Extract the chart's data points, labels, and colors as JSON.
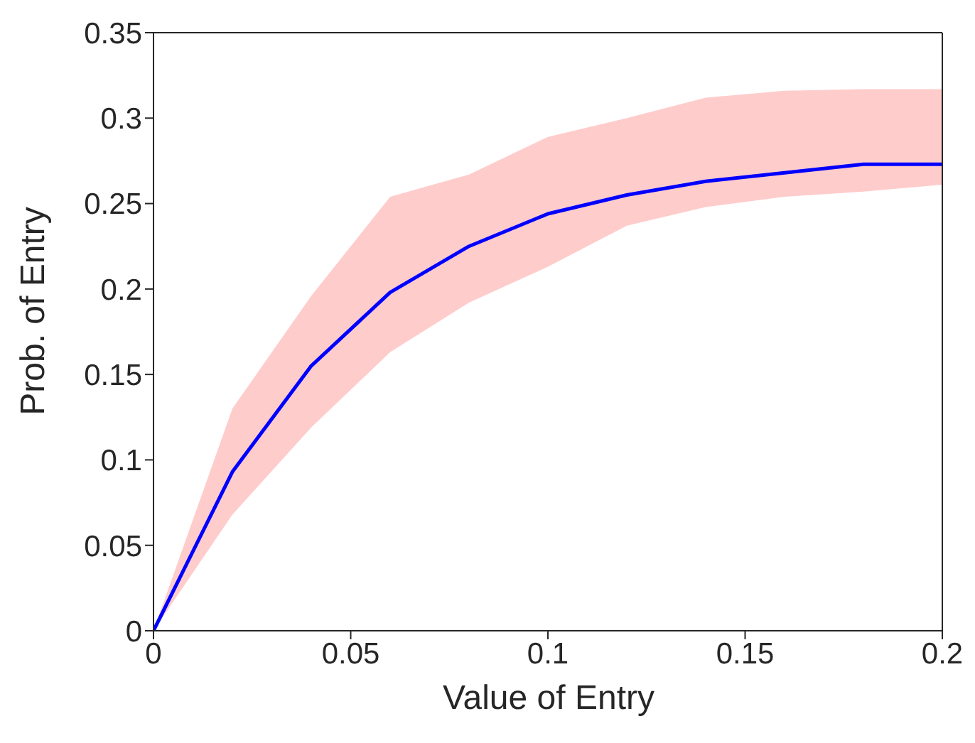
{
  "chart_data": {
    "type": "line",
    "xlabel": "Value of Entry",
    "ylabel": "Prob. of Entry",
    "x": [
      0,
      0.02,
      0.04,
      0.06,
      0.08,
      0.1,
      0.12,
      0.14,
      0.16,
      0.18,
      0.2
    ],
    "series": [
      {
        "color": "#0000ff",
        "values": [
          0,
          0.093,
          0.155,
          0.198,
          0.225,
          0.244,
          0.255,
          0.263,
          0.268,
          0.273,
          0.273
        ],
        "lower": [
          0,
          0.068,
          0.119,
          0.163,
          0.192,
          0.213,
          0.237,
          0.248,
          0.254,
          0.257,
          0.261
        ],
        "upper": [
          0,
          0.13,
          0.196,
          0.254,
          0.267,
          0.289,
          0.3,
          0.312,
          0.316,
          0.317,
          0.317
        ]
      }
    ],
    "xlim": [
      0,
      0.2
    ],
    "xticks": [
      0,
      0.05,
      0.1,
      0.15,
      0.2
    ],
    "ylim": [
      0,
      0.35
    ],
    "yticks": [
      0,
      0.05,
      0.1,
      0.15,
      0.2,
      0.25,
      0.3,
      0.35
    ],
    "grid": false,
    "legend": false,
    "marker": "none",
    "line_style": "solid"
  }
}
